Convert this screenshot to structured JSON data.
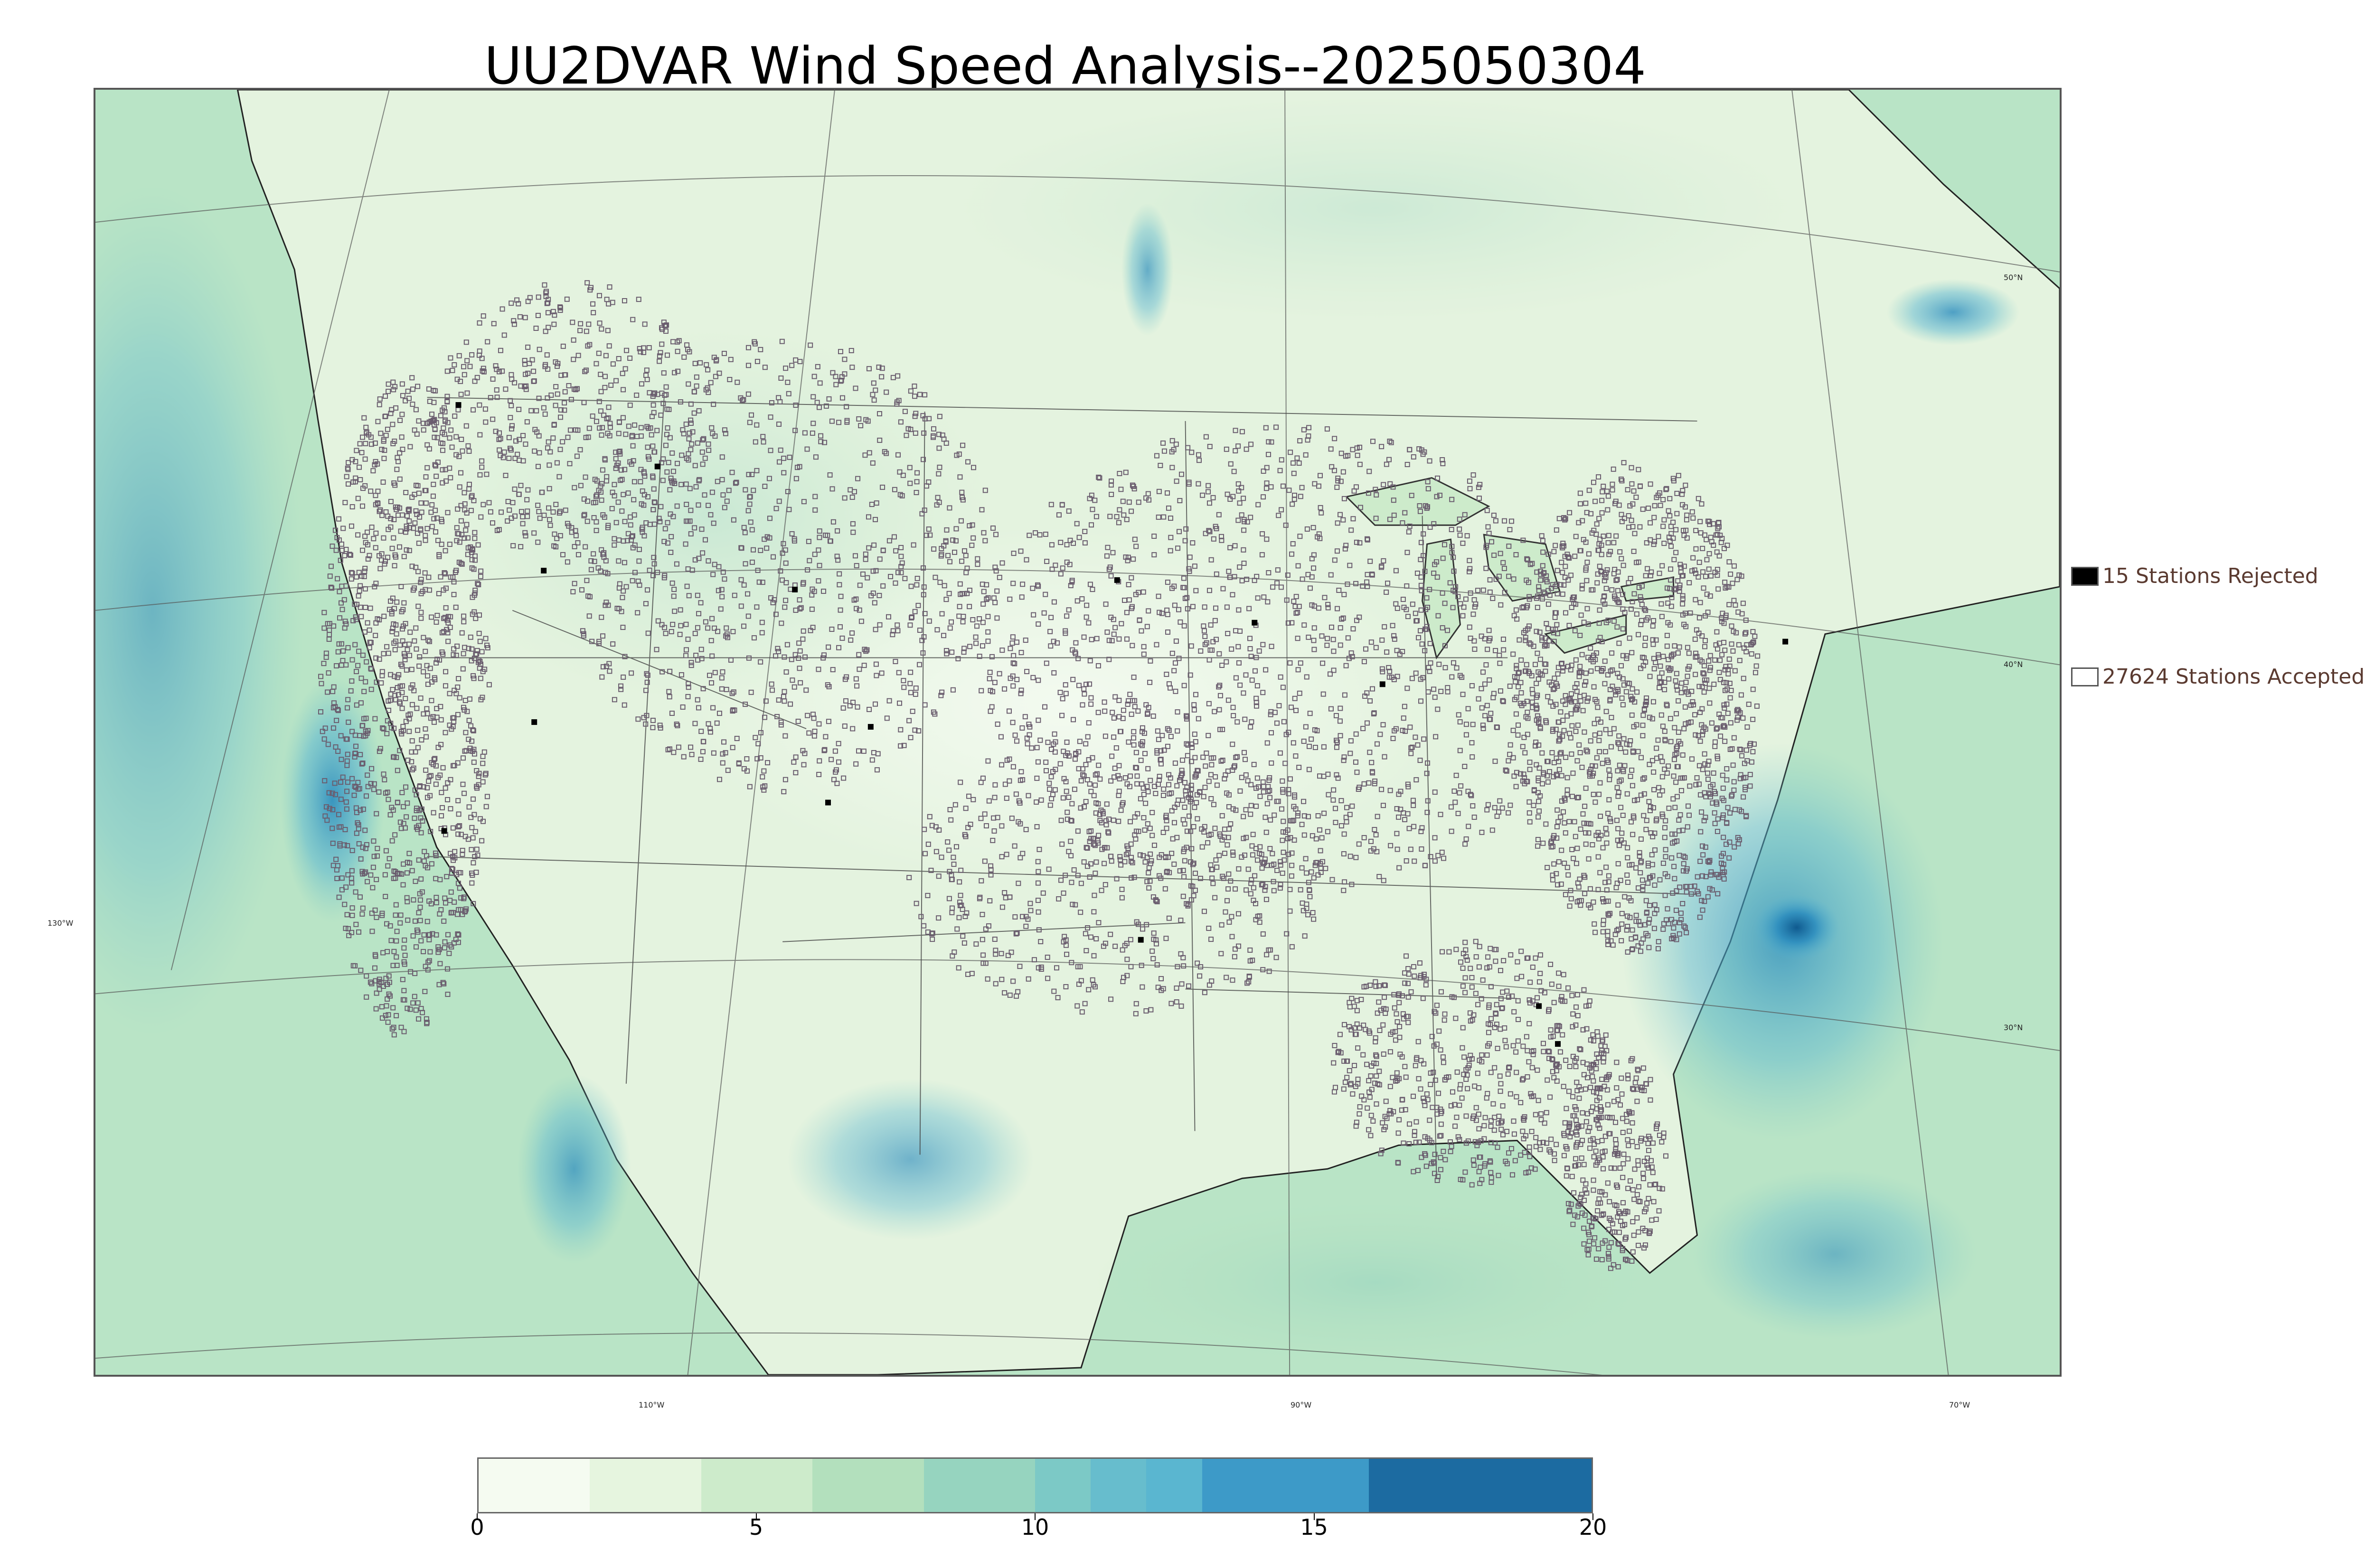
{
  "title": "UU2DVAR Wind Speed Analysis--2025050304",
  "longitude_labels": [
    "130°W",
    "110°W",
    "90°W",
    "70°W"
  ],
  "latitude_labels": [
    "50°N",
    "40°N",
    "30°N"
  ],
  "legend": {
    "rejected": {
      "label": "15 Stations Rejected",
      "count": 15,
      "swatch_color": "#000000"
    },
    "accepted": {
      "label": "27624 Stations Accepted",
      "count": 27624,
      "swatch_color": "#ffffff"
    }
  },
  "colorbar": {
    "min": 0,
    "max": 20,
    "tick_labels": [
      "0",
      "5",
      "10",
      "15",
      "20"
    ],
    "tick_values": [
      0,
      5,
      10,
      15,
      20
    ],
    "colors": [
      "#f5fbf1",
      "#e6f5df",
      "#cdebcb",
      "#b3e0bd",
      "#96d4bf",
      "#7cc9c6",
      "#67bdcd",
      "#5ab6d0",
      "#3d9ac8",
      "#1c6ba1"
    ],
    "bounds": [
      0,
      2,
      4,
      6,
      8,
      10,
      11,
      12,
      13,
      16,
      20
    ]
  },
  "colors": {
    "land_fill": "#e4f3df",
    "ocean_fill": "#a8dcbd",
    "strong_wind": "#2b8cbe",
    "peak_wind": "#0f5a8f",
    "station_marker": "#6a5d6e",
    "legend_text": "#5a3a30"
  }
}
